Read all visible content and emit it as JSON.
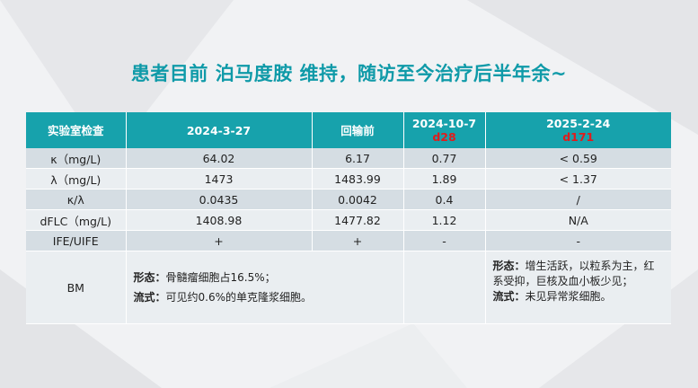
{
  "title": "患者目前  泊马度胺 维持，随访至今治疗后半年余~",
  "table": {
    "headers": [
      {
        "label": "实验室检查",
        "sub": ""
      },
      {
        "label": "2024-3-27",
        "sub": ""
      },
      {
        "label": "回输前",
        "sub": ""
      },
      {
        "label": "2024-10-7",
        "sub": "d28"
      },
      {
        "label": "2025-2-24",
        "sub": "d171"
      }
    ],
    "rows": [
      [
        "κ（mg/L)",
        "64.02",
        "6.17",
        "0.77",
        "< 0.59"
      ],
      [
        "λ（mg/L)",
        "1473",
        "1483.99",
        "1.89",
        "< 1.37"
      ],
      [
        "κ/λ",
        "0.0435",
        "0.0042",
        "0.4",
        "/"
      ],
      [
        "dFLC（mg/L)",
        "1408.98",
        "1477.82",
        "1.12",
        "N/A"
      ],
      [
        "IFE/UIFE",
        "+",
        "+",
        "-",
        "-"
      ]
    ],
    "bm": {
      "label": "BM",
      "left_morph_label": "形态：",
      "left_morph_text": "骨髓瘤细胞占16.5%；",
      "left_flow_label": "流式：",
      "left_flow_text": "可见约0.6%的单克隆浆细胞。",
      "right_morph_label": "形态：",
      "right_morph_text": "增生活跃，以粒系为主，红系受抑，巨核及血小板少见；",
      "right_flow_label": "流式：",
      "right_flow_text": "未见异常浆细胞。"
    }
  }
}
